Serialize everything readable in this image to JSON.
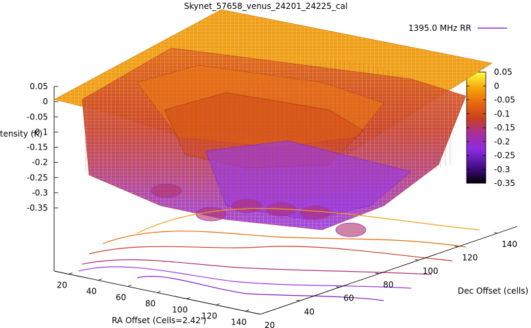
{
  "chart_data": {
    "type": "surface3d",
    "title": "Skynet_57658_venus_24201_24225_cal",
    "xlabel": "RA Offset (Cells=2.42')",
    "ylabel": "Dec Offset (cells)",
    "zlabel": "Intensity (K)",
    "xlim": [
      10,
      150
    ],
    "ylim": [
      20,
      150
    ],
    "zlim": [
      -0.35,
      0.05
    ],
    "x_ticks": [
      "20",
      "40",
      "60",
      "80",
      "100",
      "120",
      "140"
    ],
    "y_ticks": [
      "20",
      "40",
      "60",
      "80",
      "100",
      "120",
      "140"
    ],
    "z_ticks": [
      "0.05",
      "0",
      "-0.05",
      "-0.1",
      "-0.15",
      "-0.2",
      "-0.25",
      "-0.3",
      "-0.35"
    ],
    "colorbar": {
      "min": -0.35,
      "max": 0.05,
      "ticks": [
        "0.05",
        "0",
        "-0.05",
        "-0.1",
        "-0.15",
        "-0.2",
        "-0.25",
        "-0.3",
        "-0.35"
      ],
      "palette": [
        "#000000",
        "#4b0a8c",
        "#8a2be2",
        "#b0308a",
        "#d2421e",
        "#e8680c",
        "#f59a06",
        "#ffd000",
        "#ffff40"
      ]
    },
    "legend": [
      {
        "name": "1395.0 MHz RR",
        "color": "#8a2be2"
      }
    ],
    "legend_placement": "top-right",
    "surface_colors": {
      "top": "#f0a018",
      "upper": "#e87418",
      "middle": "#d04818",
      "lower": "#b03070",
      "bottom": "#9a3ae0"
    },
    "grid": false,
    "contours": true
  }
}
